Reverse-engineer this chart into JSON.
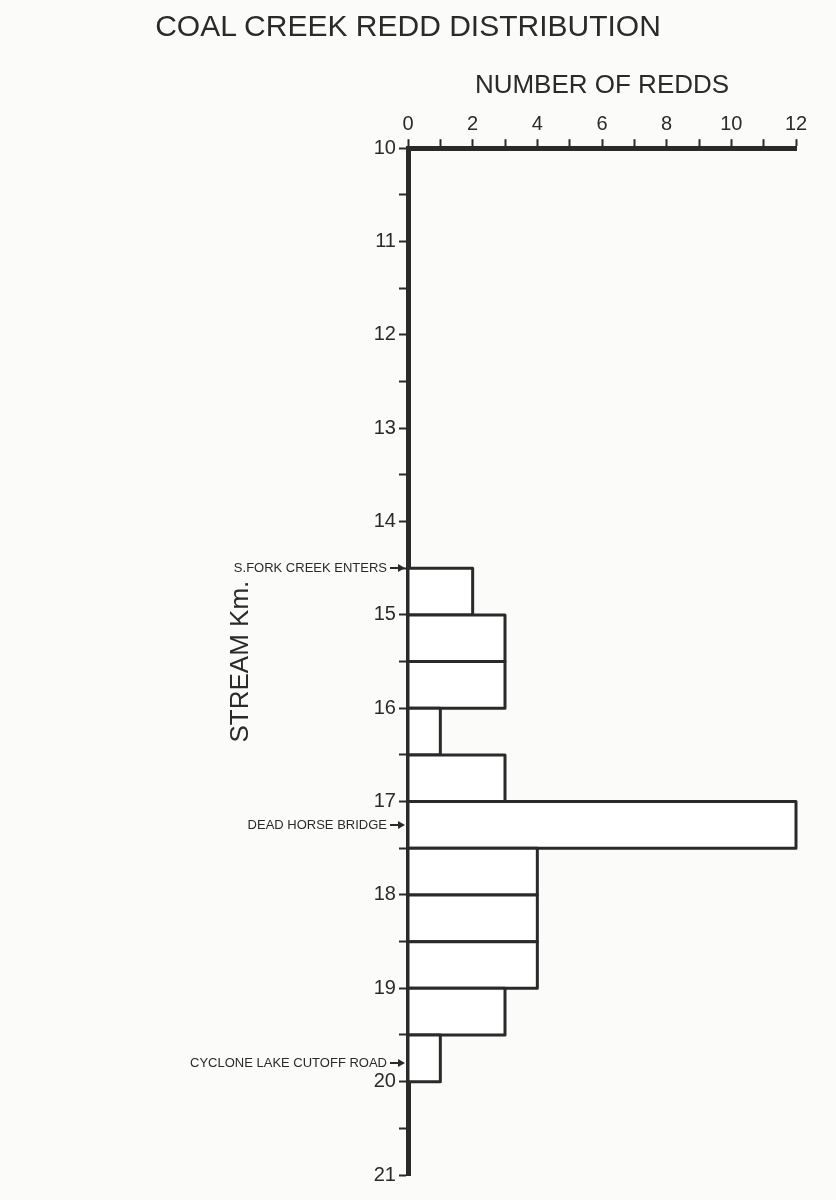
{
  "chart_data": {
    "type": "histogram",
    "orientation": "horizontal",
    "title": "COAL CREEK REDD DISTRIBUTION",
    "xlabel": "NUMBER OF REDDS",
    "ylabel": "STREAM Km.",
    "bins": [
      14.5,
      15,
      15.5,
      16,
      16.5,
      17,
      17.5,
      18,
      18.5,
      19,
      19.5,
      20
    ],
    "values": [
      2,
      3,
      3,
      1,
      3,
      12,
      4,
      4,
      4,
      3,
      1
    ],
    "color": "#ffffff",
    "xlim": [
      0,
      12
    ],
    "xticks": [
      0,
      {
        "value": 1,
        "label": null
      },
      2,
      {
        "value": 3,
        "label": null
      },
      4,
      {
        "value": 5,
        "label": null
      },
      6,
      {
        "value": 7,
        "label": null
      },
      8,
      {
        "value": 9,
        "label": null
      },
      10,
      {
        "value": 11,
        "label": null
      },
      12
    ],
    "ylim": [
      21,
      10
    ],
    "yticks": [
      10,
      {
        "value": 10.5,
        "label": null
      },
      11,
      {
        "value": 11.5,
        "label": null
      },
      12,
      {
        "value": 12.5,
        "label": null
      },
      13,
      {
        "value": 13.5,
        "label": null
      },
      14,
      {
        "value": 14.5,
        "label": null
      },
      15,
      {
        "value": 15.5,
        "label": null
      },
      16,
      {
        "value": 16.5,
        "label": null
      },
      17,
      {
        "value": 17.5,
        "label": null
      },
      18,
      {
        "value": 18.5,
        "label": null
      },
      19,
      {
        "value": 19.5,
        "label": null
      },
      20,
      {
        "value": 20.5,
        "label": null
      },
      21
    ],
    "ref_lines": [
      {
        "axis": "y",
        "value": 14.5,
        "label": "S.FORK CREEK ENTERS"
      },
      {
        "axis": "y",
        "value": 17.25,
        "label": "DEAD HORSE BRIDGE"
      },
      {
        "axis": "y",
        "value": 19.8,
        "label": "CYCLONE LAKE CUTOFF ROAD"
      }
    ]
  }
}
